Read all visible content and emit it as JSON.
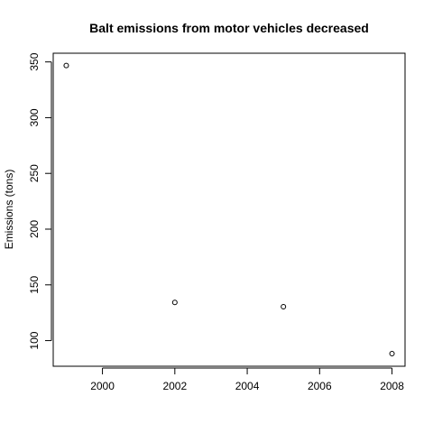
{
  "chart_data": {
    "type": "scatter",
    "title": "Balt emissions from motor vehicles decreased",
    "xlabel": "",
    "ylabel": "Emissions (tons)",
    "x": [
      1999,
      2002,
      2005,
      2008
    ],
    "y": [
      346.8,
      134.3,
      130.4,
      88.3
    ],
    "xlim": [
      1998.64,
      2008.36
    ],
    "ylim": [
      77.0,
      357.8
    ],
    "xticks": [
      2000,
      2002,
      2004,
      2006,
      2008
    ],
    "yticks": [
      100,
      150,
      200,
      250,
      300,
      350
    ],
    "xtick_labels": [
      "2000",
      "2002",
      "2004",
      "2006",
      "2008"
    ],
    "ytick_labels": [
      "100",
      "150",
      "200",
      "250",
      "300",
      "350"
    ],
    "grid": false,
    "marker": "open-circle"
  }
}
